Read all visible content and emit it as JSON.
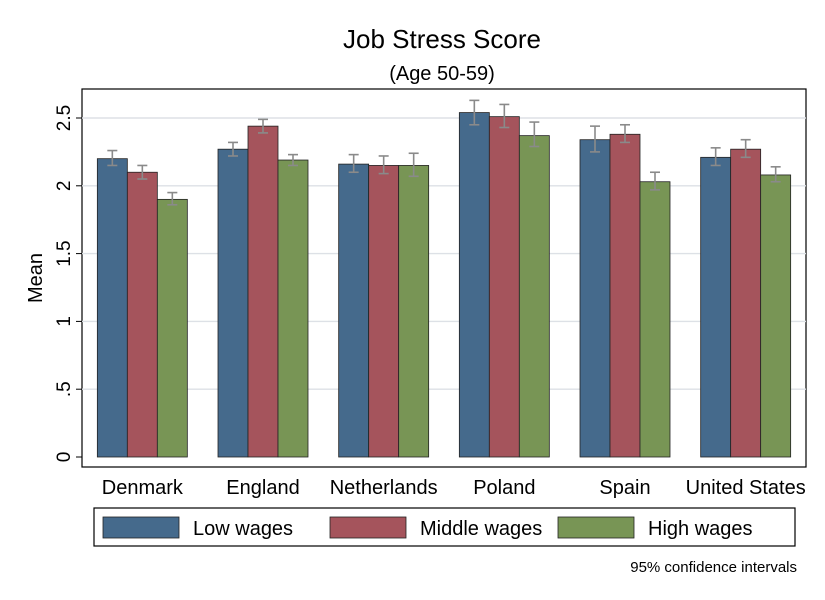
{
  "chart_data": {
    "type": "bar",
    "title": "Job Stress Score",
    "subtitle": "(Age 50-59)",
    "ylabel": "Mean",
    "xlabel": "",
    "ylim": [
      0,
      2.6
    ],
    "yticks": [
      0,
      0.5,
      1,
      1.5,
      2,
      2.5
    ],
    "ytick_labels": [
      "0",
      ".5",
      "1",
      "1.5",
      "2",
      "2.5"
    ],
    "grid": true,
    "legend_position": "bottom",
    "note": "95% confidence intervals",
    "categories": [
      "Denmark",
      "England",
      "Netherlands",
      "Poland",
      "Spain",
      "United States"
    ],
    "series": [
      {
        "name": "Low wages",
        "color": "#456A8C",
        "values": [
          2.2,
          2.27,
          2.16,
          2.54,
          2.34,
          2.21
        ],
        "ci_low": [
          2.15,
          2.22,
          2.1,
          2.45,
          2.25,
          2.15
        ],
        "ci_high": [
          2.26,
          2.32,
          2.23,
          2.63,
          2.44,
          2.28
        ]
      },
      {
        "name": "Middle wages",
        "color": "#A5545C",
        "values": [
          2.1,
          2.44,
          2.15,
          2.51,
          2.38,
          2.27
        ],
        "ci_low": [
          2.05,
          2.39,
          2.09,
          2.43,
          2.32,
          2.21
        ],
        "ci_high": [
          2.15,
          2.49,
          2.22,
          2.6,
          2.45,
          2.34
        ]
      },
      {
        "name": "High wages",
        "color": "#789555",
        "values": [
          1.9,
          2.19,
          2.15,
          2.37,
          2.03,
          2.08
        ],
        "ci_low": [
          1.86,
          2.15,
          2.07,
          2.29,
          1.97,
          2.03
        ],
        "ci_high": [
          1.95,
          2.23,
          2.24,
          2.47,
          2.1,
          2.14
        ]
      }
    ]
  }
}
